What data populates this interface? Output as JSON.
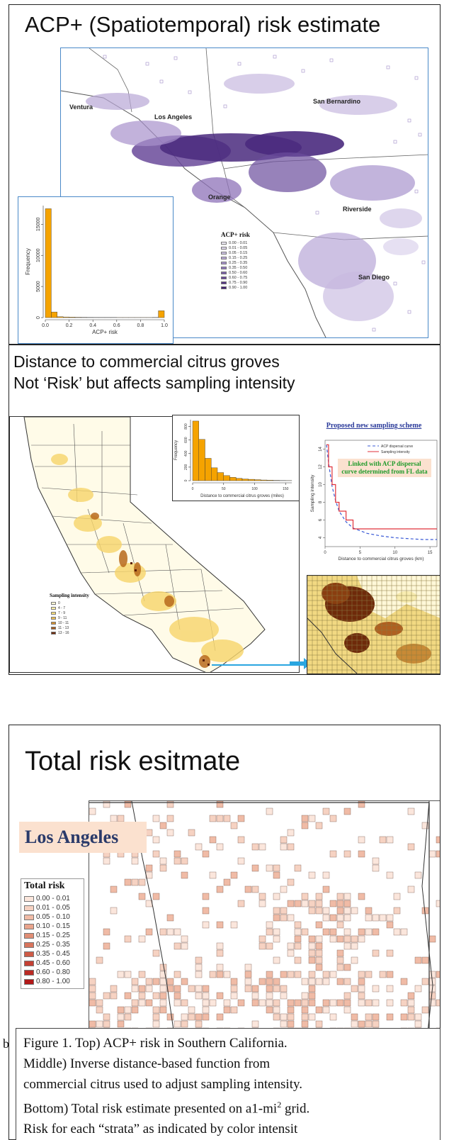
{
  "panel1": {
    "title": "ACP+ (Spatiotemporal) risk estimate",
    "counties": [
      "Ventura",
      "Los Angeles",
      "San Bernardino",
      "Orange",
      "Riverside",
      "San Diego"
    ],
    "legend_title": "ACP+ risk",
    "legend_items": [
      "0.00 - 0.01",
      "0.01 - 0.05",
      "0.05 - 0.15",
      "0.15 - 0.25",
      "0.25 - 0.35",
      "0.35 - 0.50",
      "0.50 - 0.60",
      "0.60 - 0.75",
      "0.75 - 0.90",
      "0.90 - 1.00"
    ],
    "legend_colors": [
      "#f3effa",
      "#e2daf0",
      "#cfc3e6",
      "#bba9da",
      "#a68fcd",
      "#9076be",
      "#7a5dab",
      "#684699",
      "#553387",
      "#411f72"
    ]
  },
  "panel2": {
    "title_line1": "Distance to commercial citrus groves",
    "title_line2": "Not ‘Risk’ but affects sampling intensity",
    "legend_title": "Sampling intensity",
    "legend_items": [
      "0",
      "4 - 7",
      "7 - 9",
      "9 - 11",
      "10 - 11",
      "11 - 13",
      "13 - 16"
    ],
    "legend_colors": [
      "#fffbd8",
      "#fff3a8",
      "#fbe07a",
      "#f2c050",
      "#d9922e",
      "#a85a1a",
      "#6e2a0a"
    ],
    "scheme_title": "Proposed new sampling scheme",
    "scheme_note": "Linked with ACP dispersal curve determined from FL data",
    "scheme_legend": [
      "ACP dispersal curve",
      "Sampling intensity"
    ]
  },
  "panel3": {
    "title": "Total risk esitmate",
    "county_label": "Los Angeles",
    "legend_title": "Total risk",
    "legend_items": [
      "0.00 - 0.01",
      "0.01 - 0.05",
      "0.05 - 0.10",
      "0.10 - 0.15",
      "0.15 - 0.25",
      "0.25 - 0.35",
      "0.35 - 0.45",
      "0.45 - 0.60",
      "0.60 - 0.80",
      "0.80 - 1.00"
    ],
    "legend_colors": [
      "#fbe6dc",
      "#f6d2c2",
      "#f0bba6",
      "#e9a48c",
      "#e08d74",
      "#d8745c",
      "#cf5b46",
      "#c54033",
      "#bb2a24",
      "#b21818"
    ]
  },
  "caption": {
    "stray_char": "b",
    "line1": "Figure 1.  Top) ACP+ risk in Southern California.",
    "line2": "Middle) Inverse distance-based function from",
    "line3": "commercial citrus used to adjust sampling intensity.",
    "line4_pre": "Bottom) Total risk estimate presented on a1-mi",
    "line4_sup": "2",
    "line4_post": " grid.",
    "line5": "Risk for each “strata” as indicated by color intensit"
  },
  "chart_data": [
    {
      "type": "bar",
      "xlabel": "ACP+ risk",
      "ylabel": "Frequency",
      "x_ticks": [
        "0.0",
        "0.2",
        "0.4",
        "0.6",
        "0.8",
        "1.0"
      ],
      "y_ticks": [
        "0",
        "5000",
        "10000",
        "15000"
      ],
      "bins": [
        0.0,
        0.05,
        0.1,
        0.15,
        0.2,
        0.25,
        0.3,
        0.35,
        0.4,
        0.45,
        0.5,
        0.55,
        0.6,
        0.65,
        0.7,
        0.75,
        0.8,
        0.85,
        0.9,
        0.95
      ],
      "values": [
        17500,
        900,
        150,
        100,
        80,
        60,
        50,
        40,
        35,
        30,
        25,
        25,
        20,
        20,
        20,
        20,
        20,
        20,
        30,
        1100
      ],
      "ylim": [
        0,
        18000
      ],
      "xlim": [
        0,
        1
      ]
    },
    {
      "type": "bar",
      "xlabel": "Distance to commercial citrus groves (miles)",
      "ylabel": "Frequency",
      "x_ticks": [
        "0",
        "50",
        "100",
        "150"
      ],
      "y_ticks": [
        "0",
        "200",
        "400",
        "600",
        "800"
      ],
      "bins": [
        0,
        10,
        20,
        30,
        40,
        50,
        60,
        70,
        80,
        90,
        100,
        110,
        120,
        130,
        140,
        150
      ],
      "values": [
        880,
        610,
        330,
        190,
        120,
        75,
        50,
        35,
        25,
        20,
        15,
        10,
        8,
        5,
        3,
        2
      ],
      "ylim": [
        0,
        900
      ],
      "xlim": [
        0,
        160
      ]
    },
    {
      "type": "line",
      "xlabel": "Distance to commercial citrus groves (km)",
      "ylabel": "Sampling intensity",
      "x_ticks": [
        "0",
        "5",
        "10",
        "15"
      ],
      "y_ticks": [
        "4",
        "6",
        "8",
        "10",
        "12",
        "14"
      ],
      "xlim": [
        0,
        16
      ],
      "ylim": [
        3,
        15
      ],
      "series": [
        {
          "name": "ACP dispersal curve",
          "x": [
            0.2,
            0.5,
            1,
            1.5,
            2,
            3,
            4,
            6,
            8,
            10,
            12,
            14,
            16
          ],
          "y": [
            14.5,
            12.5,
            9.8,
            8.2,
            7.0,
            5.8,
            5.1,
            4.5,
            4.2,
            4.0,
            3.9,
            3.8,
            3.8
          ]
        },
        {
          "name": "Sampling intensity",
          "x": [
            0.2,
            0.5,
            0.5,
            1,
            1,
            1.5,
            1.5,
            2,
            2,
            3,
            3,
            4,
            4,
            16
          ],
          "y": [
            14.5,
            14.5,
            12,
            12,
            10,
            10,
            8,
            8,
            7,
            7,
            6,
            6,
            5,
            5
          ]
        }
      ]
    }
  ]
}
